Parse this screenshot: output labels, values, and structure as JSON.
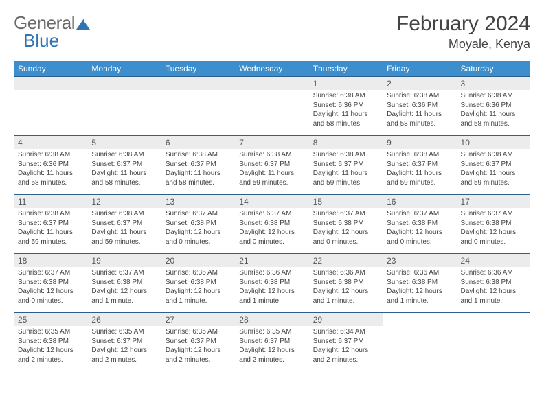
{
  "logo": {
    "text_gray": "General",
    "text_blue": "Blue"
  },
  "title": {
    "month": "February 2024",
    "location": "Moyale, Kenya"
  },
  "colors": {
    "header_bg": "#3c8ecc",
    "header_text": "#ffffff",
    "daynum_bg": "#ececec",
    "daynum_border_top": "#2e5f8a",
    "body_text": "#444444",
    "logo_gray": "#6b6b6b",
    "logo_blue": "#2f74b5"
  },
  "weekdays": [
    "Sunday",
    "Monday",
    "Tuesday",
    "Wednesday",
    "Thursday",
    "Friday",
    "Saturday"
  ],
  "weeks": [
    [
      null,
      null,
      null,
      null,
      {
        "n": "1",
        "sr": "6:38 AM",
        "ss": "6:36 PM",
        "dl": "11 hours and 58 minutes."
      },
      {
        "n": "2",
        "sr": "6:38 AM",
        "ss": "6:36 PM",
        "dl": "11 hours and 58 minutes."
      },
      {
        "n": "3",
        "sr": "6:38 AM",
        "ss": "6:36 PM",
        "dl": "11 hours and 58 minutes."
      }
    ],
    [
      {
        "n": "4",
        "sr": "6:38 AM",
        "ss": "6:36 PM",
        "dl": "11 hours and 58 minutes."
      },
      {
        "n": "5",
        "sr": "6:38 AM",
        "ss": "6:37 PM",
        "dl": "11 hours and 58 minutes."
      },
      {
        "n": "6",
        "sr": "6:38 AM",
        "ss": "6:37 PM",
        "dl": "11 hours and 58 minutes."
      },
      {
        "n": "7",
        "sr": "6:38 AM",
        "ss": "6:37 PM",
        "dl": "11 hours and 59 minutes."
      },
      {
        "n": "8",
        "sr": "6:38 AM",
        "ss": "6:37 PM",
        "dl": "11 hours and 59 minutes."
      },
      {
        "n": "9",
        "sr": "6:38 AM",
        "ss": "6:37 PM",
        "dl": "11 hours and 59 minutes."
      },
      {
        "n": "10",
        "sr": "6:38 AM",
        "ss": "6:37 PM",
        "dl": "11 hours and 59 minutes."
      }
    ],
    [
      {
        "n": "11",
        "sr": "6:38 AM",
        "ss": "6:37 PM",
        "dl": "11 hours and 59 minutes."
      },
      {
        "n": "12",
        "sr": "6:38 AM",
        "ss": "6:37 PM",
        "dl": "11 hours and 59 minutes."
      },
      {
        "n": "13",
        "sr": "6:37 AM",
        "ss": "6:38 PM",
        "dl": "12 hours and 0 minutes."
      },
      {
        "n": "14",
        "sr": "6:37 AM",
        "ss": "6:38 PM",
        "dl": "12 hours and 0 minutes."
      },
      {
        "n": "15",
        "sr": "6:37 AM",
        "ss": "6:38 PM",
        "dl": "12 hours and 0 minutes."
      },
      {
        "n": "16",
        "sr": "6:37 AM",
        "ss": "6:38 PM",
        "dl": "12 hours and 0 minutes."
      },
      {
        "n": "17",
        "sr": "6:37 AM",
        "ss": "6:38 PM",
        "dl": "12 hours and 0 minutes."
      }
    ],
    [
      {
        "n": "18",
        "sr": "6:37 AM",
        "ss": "6:38 PM",
        "dl": "12 hours and 0 minutes."
      },
      {
        "n": "19",
        "sr": "6:37 AM",
        "ss": "6:38 PM",
        "dl": "12 hours and 1 minute."
      },
      {
        "n": "20",
        "sr": "6:36 AM",
        "ss": "6:38 PM",
        "dl": "12 hours and 1 minute."
      },
      {
        "n": "21",
        "sr": "6:36 AM",
        "ss": "6:38 PM",
        "dl": "12 hours and 1 minute."
      },
      {
        "n": "22",
        "sr": "6:36 AM",
        "ss": "6:38 PM",
        "dl": "12 hours and 1 minute."
      },
      {
        "n": "23",
        "sr": "6:36 AM",
        "ss": "6:38 PM",
        "dl": "12 hours and 1 minute."
      },
      {
        "n": "24",
        "sr": "6:36 AM",
        "ss": "6:38 PM",
        "dl": "12 hours and 1 minute."
      }
    ],
    [
      {
        "n": "25",
        "sr": "6:35 AM",
        "ss": "6:38 PM",
        "dl": "12 hours and 2 minutes."
      },
      {
        "n": "26",
        "sr": "6:35 AM",
        "ss": "6:37 PM",
        "dl": "12 hours and 2 minutes."
      },
      {
        "n": "27",
        "sr": "6:35 AM",
        "ss": "6:37 PM",
        "dl": "12 hours and 2 minutes."
      },
      {
        "n": "28",
        "sr": "6:35 AM",
        "ss": "6:37 PM",
        "dl": "12 hours and 2 minutes."
      },
      {
        "n": "29",
        "sr": "6:34 AM",
        "ss": "6:37 PM",
        "dl": "12 hours and 2 minutes."
      },
      null,
      null
    ]
  ],
  "labels": {
    "sunrise": "Sunrise:",
    "sunset": "Sunset:",
    "daylight": "Daylight:"
  }
}
